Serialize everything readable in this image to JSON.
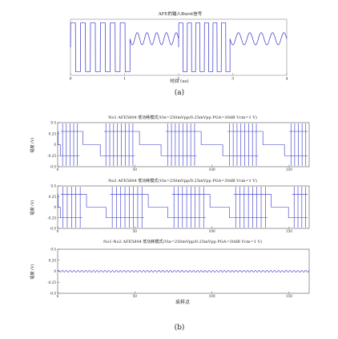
{
  "figure": {
    "caption_a": "(a)",
    "caption_b": "(b)"
  },
  "chart_data": [
    {
      "type": "line",
      "panel": "a",
      "title": "AFE的输入Burst信号",
      "xlabel": "时间 (us)",
      "ylabel": "",
      "xlim": [
        0,
        4
      ],
      "ylim": [
        -1.15,
        1.15
      ],
      "x_ticks": [
        0,
        1,
        2,
        3,
        4
      ],
      "grid": false,
      "segments": [
        {
          "kind": "burst",
          "x_start": 0.0,
          "x_end": 1.1,
          "cycles": 6,
          "amplitude": 1.0
        },
        {
          "kind": "sine",
          "x_start": 1.1,
          "x_end": 2.0,
          "cycles": 5,
          "amplitude": 0.25
        },
        {
          "kind": "burst",
          "x_start": 2.0,
          "x_end": 2.95,
          "cycles": 6,
          "amplitude": 1.0
        },
        {
          "kind": "sine",
          "x_start": 2.95,
          "x_end": 4.0,
          "cycles": 5,
          "amplitude": 0.25
        }
      ],
      "color": "#3333cc"
    },
    {
      "type": "line",
      "panel": "b1",
      "title": "No1 AFE5804 低功耗模式(Vin=250mVpp/0.25mVpp PGA=30dB Vcm=1 V)",
      "xlabel": "",
      "ylabel": "幅度 (V)",
      "xlim": [
        0,
        163
      ],
      "ylim": [
        -0.5,
        0.5
      ],
      "x_ticks": [
        0,
        50,
        100,
        150
      ],
      "y_ticks": [
        "-0.5",
        "-0.25",
        "0",
        "0.25",
        "0.5"
      ],
      "grid": false,
      "bursts": [
        {
          "x_start": 2,
          "x_end": 14,
          "lines": 5
        },
        {
          "x_start": 30,
          "x_end": 50,
          "lines": 8
        },
        {
          "x_start": 70,
          "x_end": 90,
          "lines": 8
        },
        {
          "x_start": 110,
          "x_end": 130,
          "lines": 8
        },
        {
          "x_start": 150,
          "x_end": 162,
          "lines": 5
        }
      ],
      "steps": {
        "high": 0.3,
        "low": -0.25
      },
      "color": "#3333cc"
    },
    {
      "type": "line",
      "panel": "b2",
      "title": "No2 AFE5804 低功耗模式(Vin=250mVpp/0.25mVpp PGA=30dB Vcm=1 V)",
      "xlabel": "",
      "ylabel": "幅度 (V)",
      "xlim": [
        0,
        163
      ],
      "ylim": [
        -0.5,
        0.5
      ],
      "x_ticks": [
        0,
        50,
        100,
        150
      ],
      "y_ticks": [
        "-0.5",
        "-0.25",
        "0",
        "0.25",
        "0.5"
      ],
      "grid": false,
      "bursts": [
        {
          "x_start": 2,
          "x_end": 16,
          "lines": 5
        },
        {
          "x_start": 34,
          "x_end": 56,
          "lines": 8
        },
        {
          "x_start": 74,
          "x_end": 96,
          "lines": 8
        },
        {
          "x_start": 114,
          "x_end": 136,
          "lines": 8
        },
        {
          "x_start": 152,
          "x_end": 162,
          "lines": 4
        }
      ],
      "steps": {
        "high": 0.3,
        "low": -0.25
      },
      "color": "#3333cc"
    },
    {
      "type": "line",
      "panel": "b3",
      "title": "No1-No2 AFE5804 低功耗模式(Vin=250mVpp/0.25mVpp PGA=30dB Vcm=1 V)",
      "xlabel": "采样点",
      "ylabel": "幅度 (V)",
      "xlim": [
        0,
        163
      ],
      "ylim": [
        -0.5,
        0.5
      ],
      "x_ticks": [
        0,
        50,
        100,
        150
      ],
      "y_ticks": [
        "-0.5",
        "-0.25",
        "0",
        "0.25",
        "0.5"
      ],
      "grid": false,
      "ripple": {
        "amplitude": 0.02,
        "cycles_per_sample": 0.4
      },
      "color": "#3333cc"
    }
  ]
}
